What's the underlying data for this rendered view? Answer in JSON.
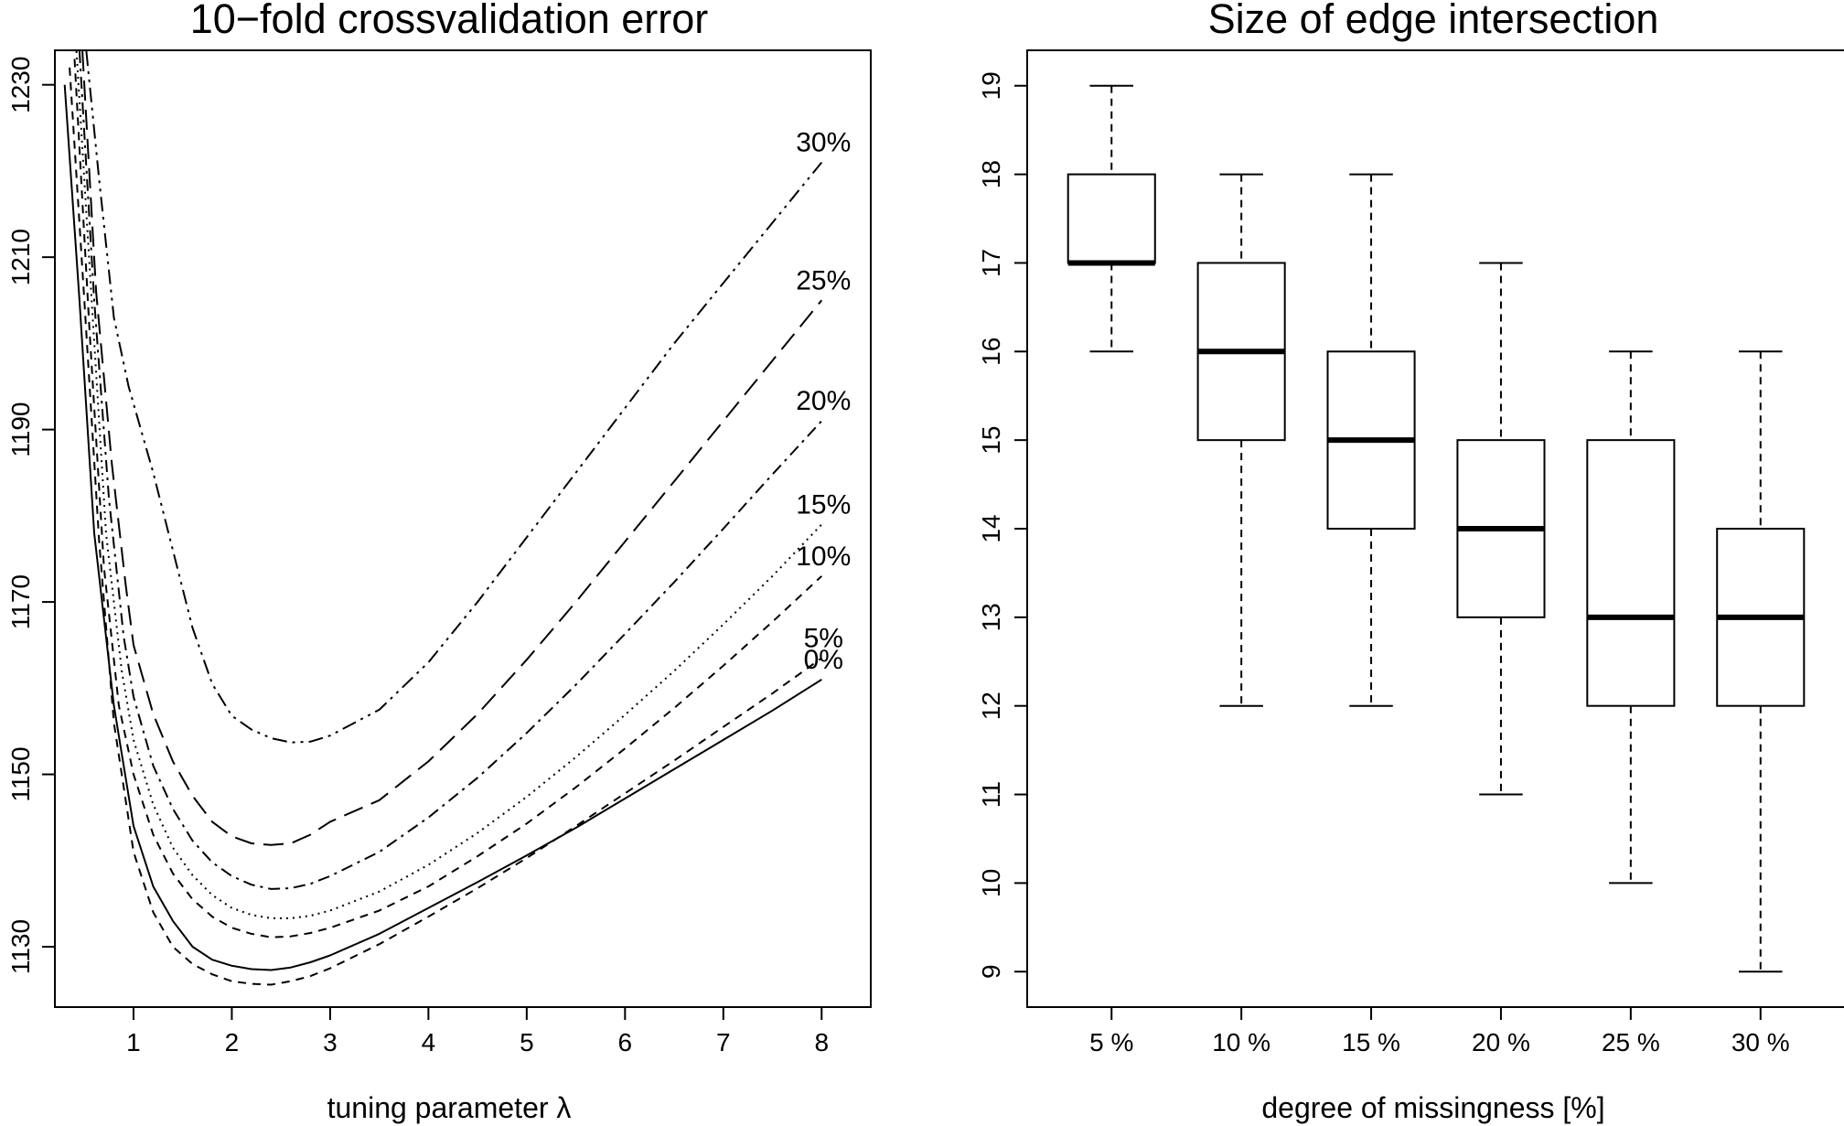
{
  "chart_data": [
    {
      "type": "line",
      "title": "10−fold crossvalidation error",
      "xlabel": "tuning parameter λ",
      "ylabel": "",
      "xlim": [
        0.2,
        8.5
      ],
      "ylim": [
        1123,
        1234
      ],
      "xticks": [
        1,
        2,
        3,
        4,
        5,
        6,
        7,
        8
      ],
      "yticks": [
        1130,
        1150,
        1170,
        1190,
        1210,
        1230
      ],
      "grid": false,
      "legend": "none",
      "series": [
        {
          "name": "0%",
          "label": "0%",
          "dash": "",
          "x": [
            0.3,
            0.45,
            0.6,
            0.8,
            1.0,
            1.2,
            1.4,
            1.6,
            1.8,
            2.0,
            2.2,
            2.4,
            2.6,
            2.8,
            3.0,
            3.5,
            4.0,
            4.5,
            5.0,
            5.5,
            6.0,
            6.5,
            7.0,
            7.5,
            8.0
          ],
          "y": [
            1230,
            1205,
            1178,
            1158,
            1144,
            1137,
            1133,
            1130,
            1128.5,
            1127.8,
            1127.4,
            1127.3,
            1127.6,
            1128.2,
            1129,
            1131.5,
            1134.5,
            1137.5,
            1140.6,
            1143.8,
            1147.2,
            1150.6,
            1154,
            1157.4,
            1161
          ]
        },
        {
          "name": "5%",
          "label": "5%",
          "dash": "9,7",
          "x": [
            0.35,
            0.5,
            0.65,
            0.8,
            1.0,
            1.2,
            1.4,
            1.6,
            1.8,
            2.0,
            2.2,
            2.4,
            2.6,
            2.8,
            3.0,
            3.5,
            4.0,
            4.5,
            5.0,
            5.5,
            6.0,
            6.5,
            7.0,
            7.5,
            8.0
          ],
          "y": [
            1232,
            1205,
            1177,
            1156,
            1141,
            1134,
            1130,
            1128,
            1126.8,
            1126,
            1125.7,
            1125.6,
            1126,
            1126.6,
            1127.5,
            1130.3,
            1133.5,
            1136.8,
            1140.3,
            1144,
            1147.8,
            1151.6,
            1155.5,
            1159.4,
            1163.5
          ]
        },
        {
          "name": "10%",
          "label": "10%",
          "dash": "9,7",
          "x": [
            0.4,
            0.55,
            0.7,
            0.85,
            1.0,
            1.2,
            1.4,
            1.6,
            1.8,
            2.0,
            2.2,
            2.4,
            2.6,
            2.8,
            3.0,
            3.5,
            4.0,
            4.5,
            5.0,
            5.5,
            6.0,
            6.5,
            7.0,
            7.5,
            8.0
          ],
          "y": [
            1233,
            1202,
            1174,
            1158,
            1150,
            1143,
            1138.5,
            1135.5,
            1133.5,
            1132.2,
            1131.5,
            1131.1,
            1131.2,
            1131.6,
            1132.2,
            1134.2,
            1137,
            1140.5,
            1144.3,
            1148.5,
            1153,
            1157.7,
            1162.6,
            1167.7,
            1173
          ]
        },
        {
          "name": "15%",
          "label": "15%",
          "dash": "2,5",
          "x": [
            0.42,
            0.58,
            0.72,
            0.88,
            1.0,
            1.2,
            1.4,
            1.6,
            1.8,
            2.0,
            2.2,
            2.4,
            2.6,
            2.8,
            3.0,
            3.5,
            4.0,
            4.5,
            5.0,
            5.5,
            6.0,
            6.5,
            7.0,
            7.5,
            8.0
          ],
          "y": [
            1234,
            1204,
            1178,
            1162,
            1154,
            1146.5,
            1141.5,
            1138.3,
            1136,
            1134.5,
            1133.7,
            1133.3,
            1133.3,
            1133.6,
            1134.2,
            1136.4,
            1139.5,
            1143.2,
            1147.4,
            1152,
            1156.9,
            1162,
            1167.4,
            1173,
            1179
          ]
        },
        {
          "name": "20%",
          "label": "20%",
          "dash": "13,6,3,6",
          "x": [
            0.45,
            0.6,
            0.75,
            0.9,
            1.0,
            1.2,
            1.4,
            1.6,
            1.8,
            2.0,
            2.2,
            2.4,
            2.6,
            2.8,
            3.0,
            3.5,
            4.0,
            4.5,
            5.0,
            5.5,
            6.0,
            6.5,
            7.0,
            7.5,
            8.0
          ],
          "y": [
            1234,
            1205,
            1182,
            1166,
            1159,
            1151,
            1146,
            1142.3,
            1139.8,
            1138.2,
            1137.2,
            1136.7,
            1136.8,
            1137.3,
            1138.2,
            1141,
            1145,
            1149.6,
            1154.8,
            1160.4,
            1166.3,
            1172.3,
            1178.5,
            1184.8,
            1191
          ]
        },
        {
          "name": "25%",
          "label": "25%",
          "dash": "22,10",
          "x": [
            0.48,
            0.62,
            0.78,
            0.92,
            1.0,
            1.2,
            1.4,
            1.6,
            1.8,
            2.0,
            2.2,
            2.4,
            2.6,
            2.8,
            3.0,
            3.5,
            4.0,
            4.5,
            5.0,
            5.5,
            6.0,
            6.5,
            7.0,
            7.5,
            8.0
          ],
          "y": [
            1234,
            1206,
            1186,
            1172,
            1165,
            1157,
            1151.5,
            1147.5,
            1144.5,
            1142.8,
            1142,
            1141.8,
            1142,
            1143,
            1144.5,
            1147,
            1151.5,
            1157,
            1163.3,
            1170,
            1177,
            1184,
            1191,
            1198,
            1205
          ]
        },
        {
          "name": "30%",
          "label": "30%",
          "dash": "16,6,3,6,3,6",
          "x": [
            0.52,
            0.65,
            0.8,
            0.95,
            1.0,
            1.2,
            1.4,
            1.6,
            1.8,
            2.0,
            2.2,
            2.4,
            2.6,
            2.8,
            3.0,
            3.5,
            4.0,
            4.5,
            5.0,
            5.5,
            6.0,
            6.5,
            7.0,
            7.5,
            8.0
          ],
          "y": [
            1234,
            1219,
            1203,
            1195,
            1193,
            1185,
            1176,
            1167,
            1160.5,
            1156.8,
            1155.2,
            1154.2,
            1153.7,
            1153.8,
            1154.5,
            1157.5,
            1163,
            1170,
            1177.5,
            1185,
            1192.5,
            1200,
            1207,
            1214,
            1221
          ]
        }
      ]
    },
    {
      "type": "box",
      "title": "Size of edge intersection",
      "xlabel": "degree of missingness [%]",
      "ylabel": "",
      "ylim": [
        8.6,
        19.4
      ],
      "yticks": [
        9,
        10,
        11,
        12,
        13,
        14,
        15,
        16,
        17,
        18,
        19
      ],
      "grid": false,
      "categories": [
        "5 %",
        "10 %",
        "15 %",
        "20 %",
        "25 %",
        "30 %"
      ],
      "boxes": [
        {
          "whisker_low": 16,
          "q1": 17,
          "median": 17,
          "q3": 18,
          "whisker_high": 19
        },
        {
          "whisker_low": 12,
          "q1": 15,
          "median": 16,
          "q3": 17,
          "whisker_high": 18
        },
        {
          "whisker_low": 12,
          "q1": 14,
          "median": 15,
          "q3": 16,
          "whisker_high": 18
        },
        {
          "whisker_low": 11,
          "q1": 13,
          "median": 14,
          "q3": 15,
          "whisker_high": 17
        },
        {
          "whisker_low": 10,
          "q1": 12,
          "median": 13,
          "q3": 15,
          "whisker_high": 16
        },
        {
          "whisker_low": 9,
          "q1": 12,
          "median": 13,
          "q3": 14,
          "whisker_high": 16
        }
      ]
    }
  ]
}
